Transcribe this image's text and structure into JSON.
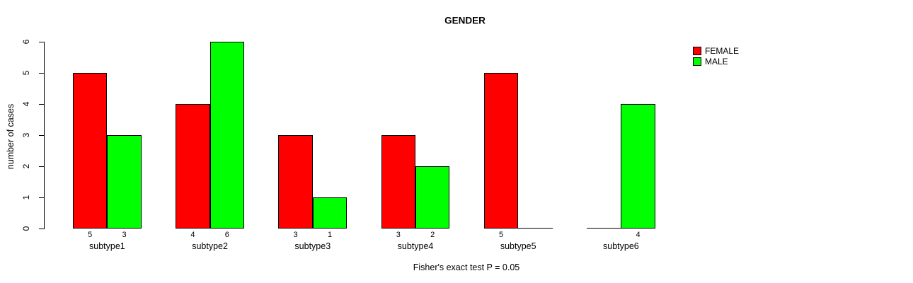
{
  "chart_data": {
    "type": "bar",
    "title": "GENDER",
    "ylabel": "number of cases",
    "xlabel": "",
    "annotation": "Fisher's exact test P = 0.05",
    "categories": [
      "subtype1",
      "subtype2",
      "subtype3",
      "subtype4",
      "subtype5",
      "subtype6"
    ],
    "series": [
      {
        "name": "FEMALE",
        "color": "#ff0000",
        "values": [
          5,
          4,
          3,
          3,
          5,
          0
        ]
      },
      {
        "name": "MALE",
        "color": "#00ff00",
        "values": [
          3,
          6,
          1,
          2,
          0,
          4
        ]
      }
    ],
    "bar_value_labels": [
      [
        "5",
        "3"
      ],
      [
        "4",
        "6"
      ],
      [
        "3",
        "1"
      ],
      [
        "3",
        "2"
      ],
      [
        "5",
        ""
      ],
      [
        "",
        "4"
      ]
    ],
    "ylim": [
      0,
      6
    ],
    "yticks": [
      0,
      1,
      2,
      3,
      4,
      5,
      6
    ],
    "grid": false,
    "legend_position": "top-right",
    "bar_border_color": "#000000",
    "background_color": "#ffffff"
  }
}
